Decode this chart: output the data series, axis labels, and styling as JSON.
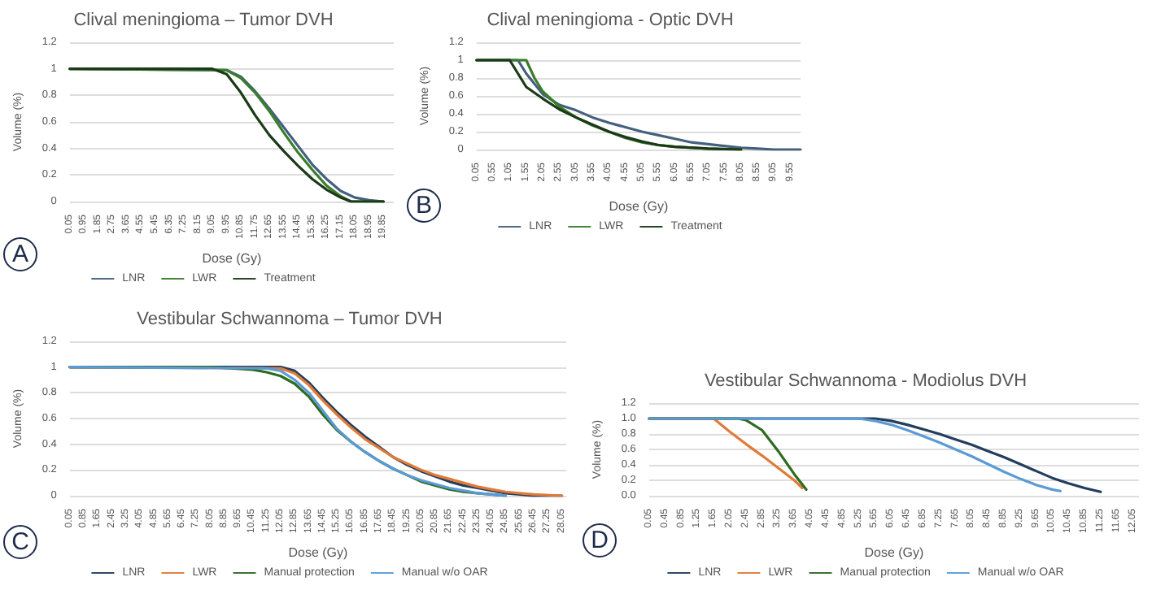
{
  "chart_data": [
    {
      "type": "line",
      "title": "Clival meningioma – Tumor DVH",
      "xlabel": "Dose (Gy)",
      "ylabel": "Volume (%)",
      "annotations": [
        "A"
      ],
      "grid": "y",
      "legend": "bottom",
      "marker": "none",
      "line_style": "solid",
      "xlim": [
        0.05,
        20.5
      ],
      "xticks": [
        0.05,
        0.95,
        1.85,
        2.75,
        3.65,
        4.55,
        5.45,
        6.35,
        7.25,
        8.15,
        9.05,
        9.95,
        10.85,
        11.75,
        12.65,
        13.55,
        14.45,
        15.35,
        16.25,
        17.15,
        18.05,
        18.95,
        19.85
      ],
      "ylim": [
        0,
        1.2
      ],
      "yticks": [
        0,
        0.2,
        0.4,
        0.6,
        0.8,
        1,
        1.2
      ],
      "series": [
        {
          "name": "LNR",
          "color": "#44607e",
          "x": [
            0.05,
            9.95,
            10.85,
            11.75,
            12.65,
            13.55,
            14.45,
            15.35,
            16.25,
            17.15,
            18.05,
            18.95,
            19.85
          ],
          "values": [
            1,
            0.99,
            0.94,
            0.83,
            0.7,
            0.56,
            0.42,
            0.28,
            0.17,
            0.08,
            0.03,
            0.01,
            0
          ]
        },
        {
          "name": "LWR",
          "color": "#3a7d2c",
          "x": [
            0.05,
            9.95,
            10.85,
            11.75,
            12.65,
            13.55,
            14.45,
            15.35,
            16.25,
            17.15,
            17.8,
            19.85
          ],
          "values": [
            1,
            0.99,
            0.93,
            0.82,
            0.68,
            0.52,
            0.37,
            0.24,
            0.12,
            0.04,
            0,
            0
          ]
        },
        {
          "name": "Treatment",
          "color": "#1b3a17",
          "x": [
            0.05,
            9.05,
            9.95,
            10.85,
            11.75,
            12.65,
            13.55,
            14.45,
            15.35,
            16.25,
            17.15,
            17.8,
            19.85
          ],
          "values": [
            1,
            1,
            0.96,
            0.82,
            0.65,
            0.5,
            0.38,
            0.27,
            0.17,
            0.09,
            0.03,
            0,
            0
          ]
        }
      ]
    },
    {
      "type": "line",
      "title": "Clival meningioma - Optic DVH",
      "xlabel": "Dose (Gy)",
      "ylabel": "Volume (%)",
      "annotations": [
        "B"
      ],
      "grid": "y",
      "legend": "bottom",
      "marker": "none",
      "line_style": "solid",
      "xlim": [
        0.05,
        9.85
      ],
      "xticks": [
        0.05,
        0.55,
        1.05,
        1.55,
        2.05,
        2.55,
        3.05,
        3.55,
        4.05,
        4.55,
        5.05,
        5.55,
        6.05,
        6.55,
        7.05,
        7.55,
        8.05,
        8.55,
        9.05,
        9.55
      ],
      "ylim": [
        0,
        1.2
      ],
      "yticks": [
        0,
        0.2,
        0.4,
        0.6,
        0.8,
        1,
        1.2
      ],
      "series": [
        {
          "name": "LNR",
          "color": "#44607e",
          "x": [
            0.05,
            1.3,
            1.55,
            2.05,
            2.55,
            3.05,
            3.55,
            4.05,
            4.55,
            5.05,
            5.55,
            6.05,
            6.55,
            7.05,
            7.55,
            8.05,
            8.55,
            9.05,
            9.85
          ],
          "values": [
            1,
            1,
            0.85,
            0.62,
            0.5,
            0.44,
            0.36,
            0.3,
            0.25,
            0.2,
            0.16,
            0.12,
            0.08,
            0.06,
            0.04,
            0.02,
            0.01,
            0,
            0
          ]
        },
        {
          "name": "LWR",
          "color": "#3a7d2c",
          "x": [
            0.05,
            1.55,
            1.8,
            2.05,
            2.55,
            3.05,
            3.55,
            4.05,
            4.55,
            5.05,
            5.55,
            6.05,
            7.05,
            8.05
          ],
          "values": [
            1,
            1,
            0.8,
            0.65,
            0.48,
            0.36,
            0.27,
            0.2,
            0.13,
            0.08,
            0.05,
            0.03,
            0.01,
            0
          ]
        },
        {
          "name": "Treatment",
          "color": "#1b3a17",
          "x": [
            0.05,
            1.05,
            1.3,
            1.55,
            2.05,
            2.55,
            3.05,
            3.55,
            4.05,
            4.55,
            5.05,
            5.55,
            6.05,
            7.05,
            8.05
          ],
          "values": [
            1,
            1,
            0.85,
            0.7,
            0.57,
            0.45,
            0.36,
            0.28,
            0.2,
            0.14,
            0.09,
            0.05,
            0.03,
            0.01,
            0
          ]
        }
      ]
    },
    {
      "type": "line",
      "title": "Vestibular Schwannoma – Tumor DVH",
      "xlabel": "Dose (Gy)",
      "ylabel": "Volume (%)",
      "annotations": [
        "C"
      ],
      "grid": "y",
      "legend": "bottom",
      "marker": "none",
      "line_style": "solid",
      "xlim": [
        0.05,
        28.3
      ],
      "xticks": [
        0.05,
        0.85,
        1.65,
        2.45,
        3.25,
        4.05,
        4.85,
        5.65,
        6.45,
        7.25,
        8.05,
        8.85,
        9.65,
        10.45,
        11.25,
        12.05,
        12.85,
        13.65,
        14.45,
        15.25,
        16.05,
        16.85,
        17.65,
        18.45,
        19.25,
        20.05,
        20.85,
        21.65,
        22.45,
        23.25,
        24.05,
        24.85,
        25.65,
        26.45,
        27.25,
        28.05
      ],
      "ylim": [
        0,
        1.2
      ],
      "yticks": [
        0,
        0.2,
        0.4,
        0.6,
        0.8,
        1,
        1.2
      ],
      "series": [
        {
          "name": "LNR",
          "color": "#223d5e",
          "x": [
            0.05,
            12.05,
            12.85,
            13.65,
            14.45,
            15.25,
            16.05,
            16.85,
            17.65,
            18.45,
            19.25,
            20.05,
            20.85,
            21.65,
            22.45,
            23.25,
            24.05,
            24.85,
            25.65,
            26.45,
            28.05
          ],
          "values": [
            1,
            1,
            0.97,
            0.88,
            0.76,
            0.65,
            0.55,
            0.46,
            0.38,
            0.3,
            0.24,
            0.19,
            0.15,
            0.11,
            0.08,
            0.06,
            0.04,
            0.02,
            0.01,
            0,
            0
          ]
        },
        {
          "name": "LWR",
          "color": "#e07b39",
          "x": [
            0.05,
            12.05,
            12.85,
            13.65,
            14.45,
            15.25,
            16.05,
            16.85,
            17.65,
            18.45,
            19.25,
            20.05,
            20.85,
            21.65,
            22.45,
            23.25,
            24.05,
            24.85,
            25.65,
            26.45,
            28.05
          ],
          "values": [
            1,
            0.99,
            0.95,
            0.86,
            0.74,
            0.63,
            0.53,
            0.44,
            0.37,
            0.3,
            0.25,
            0.2,
            0.16,
            0.13,
            0.1,
            0.07,
            0.05,
            0.03,
            0.02,
            0.01,
            0
          ]
        },
        {
          "name": "Manual protection",
          "color": "#2e6b1f",
          "x": [
            0.05,
            8.05,
            10.45,
            11.25,
            12.05,
            12.85,
            13.65,
            14.45,
            15.25,
            16.05,
            16.85,
            17.65,
            18.45,
            19.25,
            20.05,
            20.85,
            21.65,
            22.45,
            23.25,
            24.05,
            24.85
          ],
          "values": [
            1,
            1,
            0.98,
            0.96,
            0.93,
            0.87,
            0.77,
            0.63,
            0.51,
            0.42,
            0.34,
            0.27,
            0.21,
            0.16,
            0.11,
            0.08,
            0.05,
            0.03,
            0.02,
            0.01,
            0
          ]
        },
        {
          "name": "Manual w/o OAR",
          "color": "#5b9bd5",
          "x": [
            0.05,
            11.25,
            12.05,
            12.85,
            13.65,
            14.45,
            15.25,
            16.05,
            16.85,
            17.65,
            18.45,
            19.25,
            20.05,
            20.85,
            21.65,
            22.45,
            23.25,
            24.05,
            24.85
          ],
          "values": [
            1,
            0.99,
            0.97,
            0.9,
            0.8,
            0.66,
            0.52,
            0.42,
            0.34,
            0.27,
            0.21,
            0.16,
            0.12,
            0.09,
            0.06,
            0.04,
            0.02,
            0.01,
            0
          ]
        }
      ]
    },
    {
      "type": "line",
      "title": "Vestibular Schwannoma - Modiolus DVH",
      "xlabel": "Dose (Gy)",
      "ylabel": "Volume (%)",
      "annotations": [
        "D"
      ],
      "grid": "y",
      "legend": "bottom",
      "marker": "none",
      "line_style": "solid",
      "xlim": [
        0.05,
        12.2
      ],
      "xticks": [
        0.05,
        0.45,
        0.85,
        1.25,
        1.65,
        2.05,
        2.45,
        2.85,
        3.25,
        3.65,
        4.05,
        4.45,
        4.85,
        5.25,
        5.65,
        6.05,
        6.45,
        6.85,
        7.25,
        7.65,
        8.05,
        8.45,
        8.85,
        9.25,
        9.65,
        10.05,
        10.45,
        10.85,
        11.25,
        11.65,
        12.05
      ],
      "ylim": [
        0,
        1.2
      ],
      "yticks": [
        {
          "value": 0,
          "label": "0.0"
        },
        {
          "value": 0.2,
          "label": "0.2"
        },
        {
          "value": 0.4,
          "label": "0.4"
        },
        {
          "value": 0.6,
          "label": "0.6"
        },
        {
          "value": 0.8,
          "label": "0.8"
        },
        {
          "value": 1,
          "label": "1.0"
        },
        {
          "value": 1.2,
          "label": "1.2"
        }
      ],
      "series": [
        {
          "name": "LNR",
          "color": "#223d5e",
          "x": [
            0.05,
            5.65,
            6.05,
            6.45,
            6.85,
            7.25,
            7.65,
            8.05,
            8.45,
            8.85,
            9.25,
            9.65,
            10.05,
            10.45,
            10.85,
            11.25
          ],
          "values": [
            1,
            1,
            0.97,
            0.92,
            0.86,
            0.8,
            0.73,
            0.66,
            0.58,
            0.5,
            0.41,
            0.32,
            0.23,
            0.16,
            0.1,
            0.05
          ]
        },
        {
          "name": "LWR",
          "color": "#e07b39",
          "x": [
            0.05,
            1.65,
            2.05,
            2.45,
            2.85,
            3.25,
            3.65,
            3.85
          ],
          "values": [
            1,
            1,
            0.83,
            0.67,
            0.52,
            0.36,
            0.2,
            0.1
          ]
        },
        {
          "name": "Manual protection",
          "color": "#2e6b1f",
          "x": [
            0.05,
            2.25,
            2.45,
            2.85,
            3.25,
            3.65,
            3.95
          ],
          "values": [
            1,
            1,
            0.98,
            0.85,
            0.58,
            0.28,
            0.08
          ]
        },
        {
          "name": "Manual w/o OAR",
          "color": "#5b9bd5",
          "x": [
            0.05,
            5.25,
            5.65,
            6.05,
            6.45,
            6.85,
            7.25,
            7.65,
            8.05,
            8.45,
            8.85,
            9.25,
            9.65,
            10.05,
            10.25
          ],
          "values": [
            1,
            1,
            0.97,
            0.92,
            0.85,
            0.77,
            0.69,
            0.6,
            0.51,
            0.41,
            0.31,
            0.22,
            0.14,
            0.08,
            0.06
          ]
        }
      ]
    }
  ]
}
